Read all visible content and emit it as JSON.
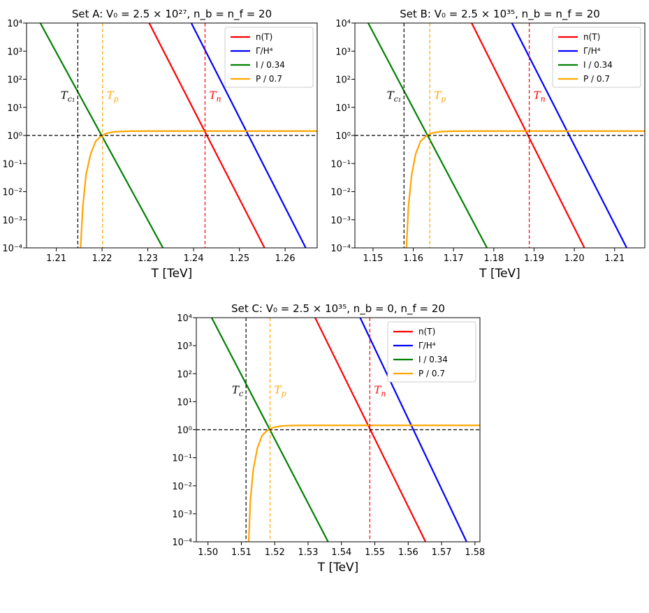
{
  "colors": {
    "n": "#ff0000",
    "gamma": "#0000ff",
    "I": "#008000",
    "P": "#ffa500",
    "guide": "#000000"
  },
  "chart_data": [
    {
      "type": "line",
      "title": "Set A: V₀ = 2.5 × 10²⁷, n_b = n_f = 20",
      "xlabel": "T [TeV]",
      "ylabel": "",
      "yscale": "log",
      "xlim": [
        1.2035,
        1.267
      ],
      "ylim": [
        0.0001,
        10000
      ],
      "xticks": [
        "1.21",
        "1.22",
        "1.23",
        "1.24",
        "1.25",
        "1.26"
      ],
      "xtick_values": [
        1.21,
        1.22,
        1.23,
        1.24,
        1.25,
        1.26
      ],
      "yticks": [
        "10⁴",
        "10³",
        "10²",
        "10¹",
        "10⁰",
        "10⁻¹",
        "10⁻²",
        "10⁻³",
        "10⁻⁴"
      ],
      "legend_position": "top-right",
      "legend": [
        "n(T)",
        "Γ/H⁴",
        "I / 0.34",
        "P / 0.7"
      ],
      "series": [
        {
          "name": "n(T)",
          "color_key": "n",
          "x": [
            1.2303,
            1.2555
          ],
          "y": [
            10000,
            0.0001
          ]
        },
        {
          "name": "Γ/H⁴",
          "color_key": "gamma",
          "x": [
            1.2395,
            1.2645
          ],
          "y": [
            10000,
            0.0001
          ]
        },
        {
          "name": "I / 0.34",
          "color_key": "I",
          "x": [
            1.2065,
            1.2333
          ],
          "y": [
            10000,
            0.0001
          ]
        },
        {
          "name": "P / 0.7",
          "color_key": "P",
          "x": [
            1.2153,
            1.2158,
            1.2165,
            1.2175,
            1.2186,
            1.2198,
            1.221,
            1.223,
            1.226,
            1.23,
            1.267
          ],
          "y": [
            0.0001,
            0.003,
            0.04,
            0.22,
            0.62,
            0.95,
            1.2,
            1.36,
            1.42,
            1.43,
            1.43
          ]
        }
      ],
      "vlines": [
        {
          "label": "T_c₁",
          "x": 1.2147,
          "color_key": "guide"
        },
        {
          "label": "T_p",
          "x": 1.2201,
          "color_key": "P"
        },
        {
          "label": "T_n",
          "x": 1.2425,
          "color_key": "n"
        }
      ],
      "hline": 1
    },
    {
      "type": "line",
      "title": "Set B: V₀ = 2.5 × 10³⁵, n_b = n_f = 20",
      "xlabel": "T [TeV]",
      "ylabel": "",
      "yscale": "log",
      "xlim": [
        1.1455,
        1.2175
      ],
      "ylim": [
        0.0001,
        10000
      ],
      "xticks": [
        "1.15",
        "1.16",
        "1.17",
        "1.18",
        "1.19",
        "1.20",
        "1.21"
      ],
      "xtick_values": [
        1.15,
        1.16,
        1.17,
        1.18,
        1.19,
        1.2,
        1.21
      ],
      "yticks": [
        "10⁴",
        "10³",
        "10²",
        "10¹",
        "10⁰",
        "10⁻¹",
        "10⁻²",
        "10⁻³",
        "10⁻⁴"
      ],
      "legend_position": "top-right",
      "legend": [
        "n(T)",
        "Γ/H⁴",
        "I / 0.34",
        "P / 0.7"
      ],
      "series": [
        {
          "name": "n(T)",
          "color_key": "n",
          "x": [
            1.1745,
            1.2025
          ],
          "y": [
            10000,
            0.0001
          ]
        },
        {
          "name": "Γ/H⁴",
          "color_key": "gamma",
          "x": [
            1.1845,
            1.213
          ],
          "y": [
            10000,
            0.0001
          ]
        },
        {
          "name": "I / 0.34",
          "color_key": "I",
          "x": [
            1.1488,
            1.1783
          ],
          "y": [
            10000,
            0.0001
          ]
        },
        {
          "name": "P / 0.7",
          "color_key": "P",
          "x": [
            1.1583,
            1.1588,
            1.1596,
            1.1606,
            1.1618,
            1.1632,
            1.1645,
            1.1665,
            1.17,
            1.175,
            1.2175
          ],
          "y": [
            0.0001,
            0.003,
            0.04,
            0.22,
            0.62,
            0.95,
            1.2,
            1.36,
            1.42,
            1.43,
            1.43
          ]
        }
      ],
      "vlines": [
        {
          "label": "T_c₁",
          "x": 1.1577,
          "color_key": "guide"
        },
        {
          "label": "T_p",
          "x": 1.1641,
          "color_key": "P"
        },
        {
          "label": "T_n",
          "x": 1.1888,
          "color_key": "n"
        }
      ],
      "hline": 1
    },
    {
      "type": "line",
      "title": "Set C: V₀ = 2.5 × 10³⁵, n_b = 0, n_f = 20",
      "xlabel": "T [TeV]",
      "ylabel": "",
      "yscale": "log",
      "xlim": [
        1.4965,
        1.5815
      ],
      "ylim": [
        0.0001,
        10000
      ],
      "xticks": [
        "1.50",
        "1.51",
        "1.52",
        "1.53",
        "1.54",
        "1.55",
        "1.56",
        "1.57",
        "1.58"
      ],
      "xtick_values": [
        1.5,
        1.51,
        1.52,
        1.53,
        1.54,
        1.55,
        1.56,
        1.57,
        1.58
      ],
      "yticks": [
        "10⁴",
        "10³",
        "10²",
        "10¹",
        "10⁰",
        "10⁻¹",
        "10⁻²",
        "10⁻³",
        "10⁻⁴"
      ],
      "legend_position": "top-right",
      "legend": [
        "n(T)",
        "Γ/H⁴",
        "I / 0.34",
        "P / 0.7"
      ],
      "series": [
        {
          "name": "n(T)",
          "color_key": "n",
          "x": [
            1.5321,
            1.5652
          ],
          "y": [
            10000,
            0.0001
          ]
        },
        {
          "name": "Γ/H⁴",
          "color_key": "gamma",
          "x": [
            1.5456,
            1.5775
          ],
          "y": [
            10000,
            0.0001
          ]
        },
        {
          "name": "I / 0.34",
          "color_key": "I",
          "x": [
            1.5011,
            1.536
          ],
          "y": [
            10000,
            0.0001
          ]
        },
        {
          "name": "P / 0.7",
          "color_key": "P",
          "x": [
            1.5122,
            1.5127,
            1.5136,
            1.5148,
            1.5162,
            1.5178,
            1.5195,
            1.522,
            1.526,
            1.532,
            1.5815
          ],
          "y": [
            0.0001,
            0.003,
            0.04,
            0.22,
            0.62,
            0.95,
            1.2,
            1.36,
            1.42,
            1.43,
            1.43
          ]
        }
      ],
      "vlines": [
        {
          "label": "T_c",
          "x": 1.5114,
          "color_key": "guide"
        },
        {
          "label": "T_p",
          "x": 1.5186,
          "color_key": "P"
        },
        {
          "label": "T_n",
          "x": 1.5485,
          "color_key": "n"
        }
      ],
      "hline": 1
    }
  ]
}
